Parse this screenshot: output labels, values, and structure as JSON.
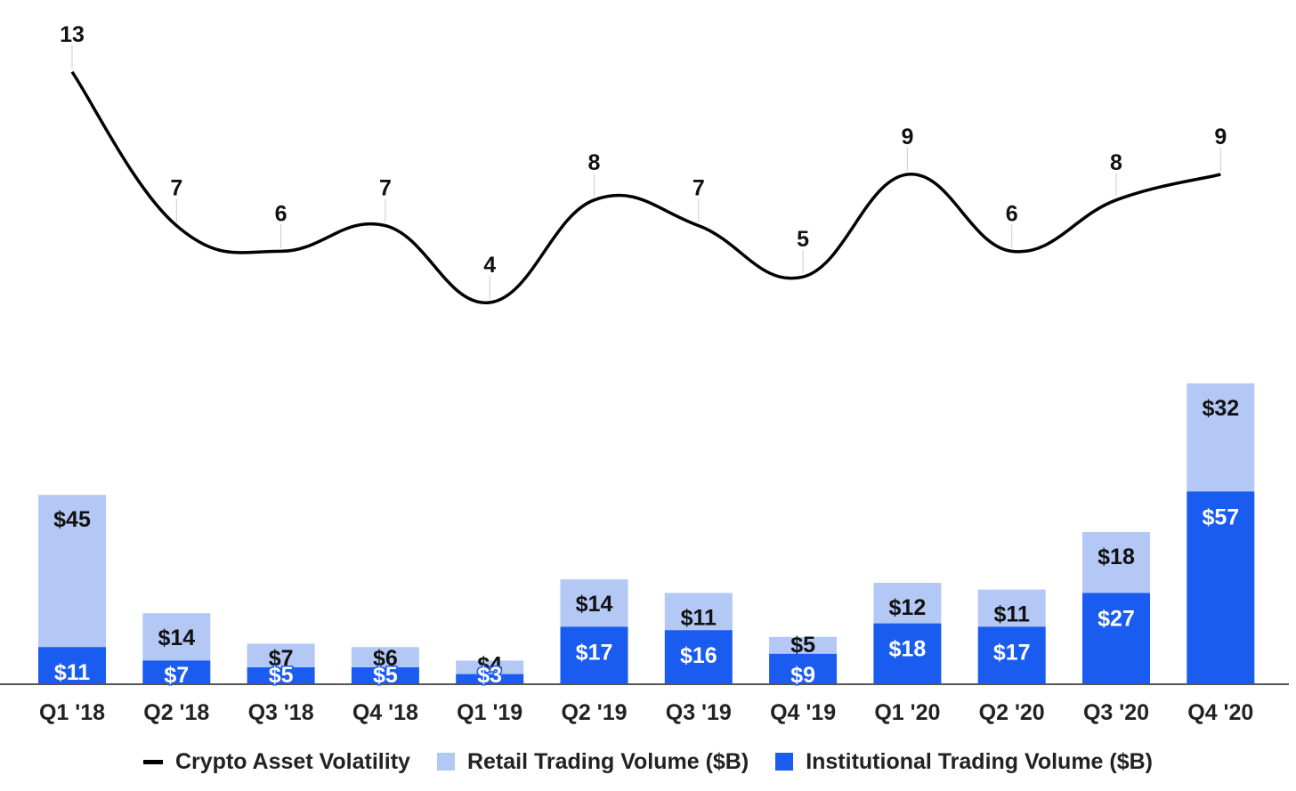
{
  "chart_data": {
    "type": "bar",
    "stacked": true,
    "categories": [
      "Q1 '18",
      "Q2 '18",
      "Q3 '18",
      "Q4 '18",
      "Q1 '19",
      "Q2 '19",
      "Q3 '19",
      "Q4 '19",
      "Q1 '20",
      "Q2 '20",
      "Q3 '20",
      "Q4 '20"
    ],
    "series": [
      {
        "name": "Institutional Trading Volume ($B)",
        "type": "bar",
        "color": "#1a5cf0",
        "values": [
          11,
          7,
          5,
          5,
          3,
          17,
          16,
          9,
          18,
          17,
          27,
          57
        ],
        "labels": [
          "$11",
          "$7",
          "$5",
          "$5",
          "$3",
          "$17",
          "$16",
          "$9",
          "$18",
          "$17",
          "$27",
          "$57"
        ]
      },
      {
        "name": "Retail Trading Volume ($B)",
        "type": "bar",
        "color": "#b3c8f5",
        "values": [
          45,
          14,
          7,
          6,
          4,
          14,
          11,
          5,
          12,
          11,
          18,
          32
        ],
        "labels": [
          "$45",
          "$14",
          "$7",
          "$6",
          "$4",
          "$14",
          "$11",
          "$5",
          "$12",
          "$11",
          "$18",
          "$32"
        ]
      },
      {
        "name": "Crypto Asset Volatility",
        "type": "line",
        "color": "#000000",
        "values": [
          13,
          7,
          6,
          7,
          4,
          8,
          7,
          5,
          9,
          6,
          8,
          9
        ],
        "labels": [
          "13",
          "7",
          "6",
          "7",
          "4",
          "8",
          "7",
          "5",
          "9",
          "6",
          "8",
          "9"
        ]
      }
    ],
    "title": "",
    "xlabel": "",
    "ylabel": "",
    "legend": "bottom",
    "grid": false
  }
}
